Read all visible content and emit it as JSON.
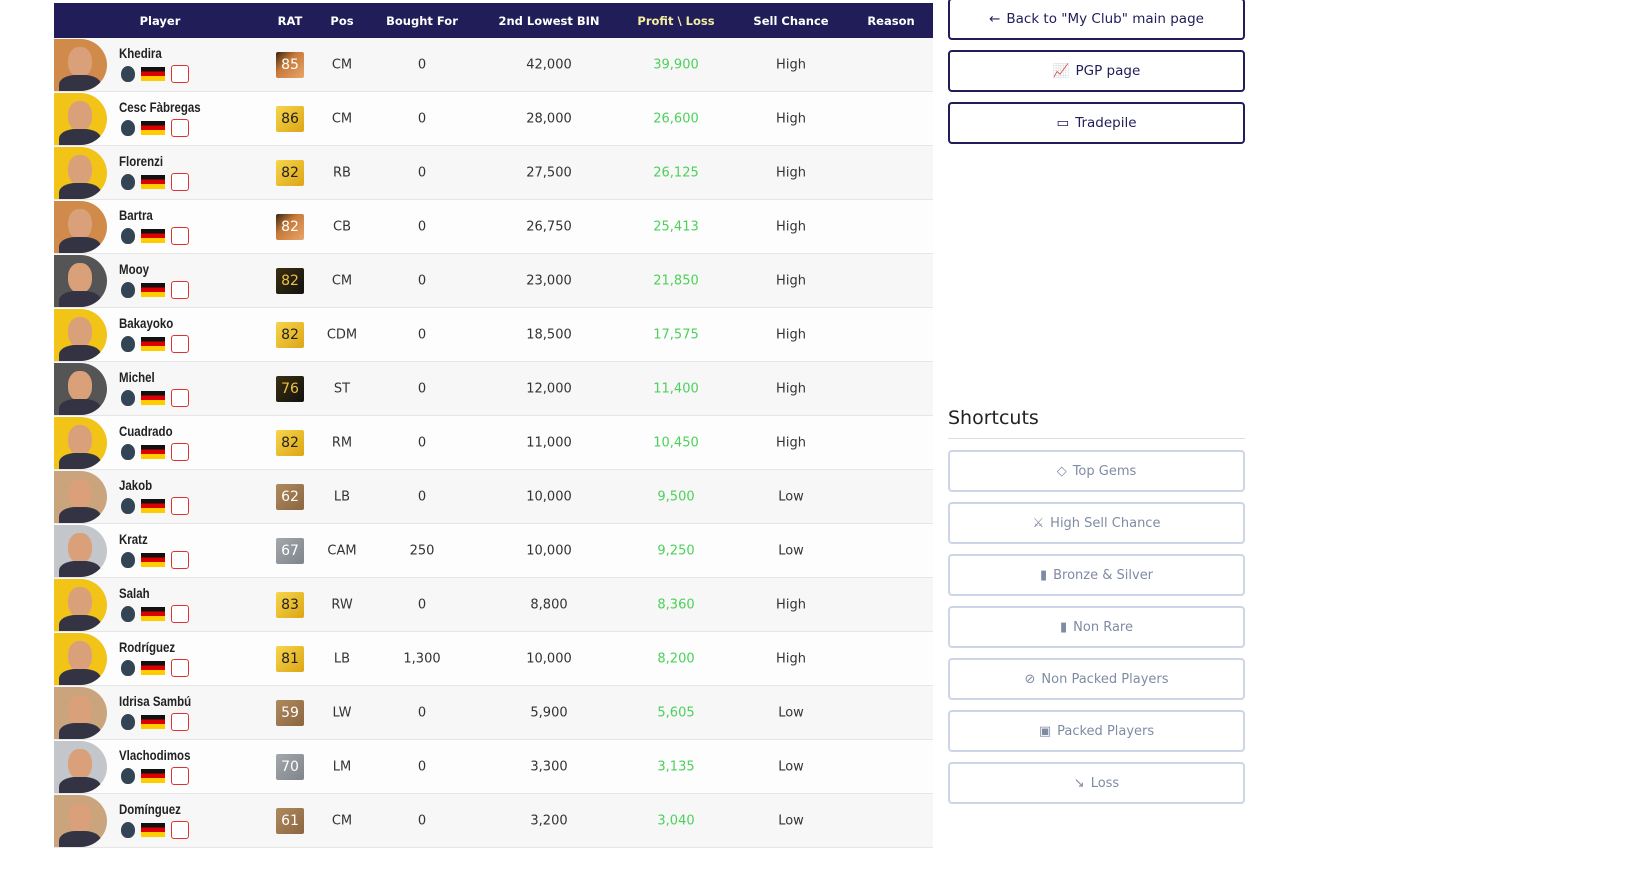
{
  "table": {
    "headers": {
      "player": "Player",
      "rat": "RAT",
      "pos": "Pos",
      "bought": "Bought For",
      "bin": "2nd Lowest BIN",
      "profit": "Profit \\ Loss",
      "sell": "Sell Chance",
      "reason": "Reason"
    },
    "rows": [
      {
        "name": "Khedira",
        "rat": "85",
        "pos": "CM",
        "bought": "0",
        "bin": "42,000",
        "profit": "39,900",
        "sell": "High",
        "card": "rare-bronze"
      },
      {
        "name": "Cesc Fàbregas",
        "rat": "86",
        "pos": "CM",
        "bought": "0",
        "bin": "28,000",
        "profit": "26,600",
        "sell": "High",
        "card": "gold"
      },
      {
        "name": "Florenzi",
        "rat": "82",
        "pos": "RB",
        "bought": "0",
        "bin": "27,500",
        "profit": "26,125",
        "sell": "High",
        "card": "gold"
      },
      {
        "name": "Bartra",
        "rat": "82",
        "pos": "CB",
        "bought": "0",
        "bin": "26,750",
        "profit": "25,413",
        "sell": "High",
        "card": "rare-bronze"
      },
      {
        "name": "Mooy",
        "rat": "82",
        "pos": "CM",
        "bought": "0",
        "bin": "23,000",
        "profit": "21,850",
        "sell": "High",
        "card": "dark"
      },
      {
        "name": "Bakayoko",
        "rat": "82",
        "pos": "CDM",
        "bought": "0",
        "bin": "18,500",
        "profit": "17,575",
        "sell": "High",
        "card": "gold"
      },
      {
        "name": "Michel",
        "rat": "76",
        "pos": "ST",
        "bought": "0",
        "bin": "12,000",
        "profit": "11,400",
        "sell": "High",
        "card": "dark"
      },
      {
        "name": "Cuadrado",
        "rat": "82",
        "pos": "RM",
        "bought": "0",
        "bin": "11,000",
        "profit": "10,450",
        "sell": "High",
        "card": "gold"
      },
      {
        "name": "Jakob",
        "rat": "62",
        "pos": "LB",
        "bought": "0",
        "bin": "10,000",
        "profit": "9,500",
        "sell": "Low",
        "card": "bronze"
      },
      {
        "name": "Kratz",
        "rat": "67",
        "pos": "CAM",
        "bought": "250",
        "bin": "10,000",
        "profit": "9,250",
        "sell": "Low",
        "card": "silver"
      },
      {
        "name": "Salah",
        "rat": "83",
        "pos": "RW",
        "bought": "0",
        "bin": "8,800",
        "profit": "8,360",
        "sell": "High",
        "card": "gold"
      },
      {
        "name": "Rodríguez",
        "rat": "81",
        "pos": "LB",
        "bought": "1,300",
        "bin": "10,000",
        "profit": "8,200",
        "sell": "High",
        "card": "gold"
      },
      {
        "name": "Idrisa Sambú",
        "rat": "59",
        "pos": "LW",
        "bought": "0",
        "bin": "5,900",
        "profit": "5,605",
        "sell": "Low",
        "card": "bronze"
      },
      {
        "name": "Vlachodimos",
        "rat": "70",
        "pos": "LM",
        "bought": "0",
        "bin": "3,300",
        "profit": "3,135",
        "sell": "Low",
        "card": "silver"
      },
      {
        "name": "Domínguez",
        "rat": "61",
        "pos": "CM",
        "bought": "0",
        "bin": "3,200",
        "profit": "3,040",
        "sell": "Low",
        "card": "bronze"
      }
    ]
  },
  "nav": {
    "back": "Back to \"My Club\" main page",
    "pgp": "PGP page",
    "tradepile": "Tradepile"
  },
  "shortcuts": {
    "title": "Shortcuts",
    "items": [
      {
        "label": "Top Gems",
        "icon": "◇",
        "name": "gem-icon"
      },
      {
        "label": "High Sell Chance",
        "icon": "⚔",
        "name": "swords-icon"
      },
      {
        "label": "Bronze & Silver",
        "icon": "▮",
        "name": "card-icon"
      },
      {
        "label": "Non Rare",
        "icon": "▮",
        "name": "gold-card-icon"
      },
      {
        "label": "Non Packed Players",
        "icon": "⊘",
        "name": "ban-icon"
      },
      {
        "label": "Packed Players",
        "icon": "▣",
        "name": "pack-icon"
      },
      {
        "label": "Loss",
        "icon": "↘",
        "name": "trend-down-icon"
      }
    ]
  },
  "colors": {
    "header": "#201d58",
    "profit": "#4cd15a"
  }
}
